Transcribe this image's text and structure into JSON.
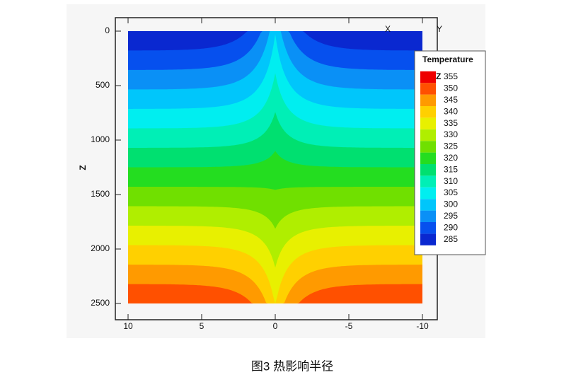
{
  "chart_data": {
    "type": "contour",
    "caption": "图3 热影响半径",
    "ylabel": "Z",
    "axis_marks": [
      "X",
      "Y"
    ],
    "legend_title": "Temperature",
    "legend_marker": "Z",
    "levels": [
      285,
      290,
      295,
      300,
      305,
      310,
      315,
      320,
      325,
      330,
      335,
      340,
      345,
      350,
      355
    ],
    "colors": [
      "#0a28d0",
      "#0650ee",
      "#0a90f6",
      "#00c6fb",
      "#00eef0",
      "#00efb6",
      "#00e070",
      "#24dd20",
      "#70e000",
      "#b0ee00",
      "#e8f000",
      "#ffd000",
      "#ff9a00",
      "#ff5000",
      "#ee0000"
    ],
    "xlim": [
      10,
      -10
    ],
    "xticks": [
      10,
      5,
      0,
      -5,
      -10
    ],
    "ylim": [
      0,
      2500
    ],
    "yticks": [
      0,
      500,
      1000,
      1500,
      2000,
      2500
    ]
  }
}
